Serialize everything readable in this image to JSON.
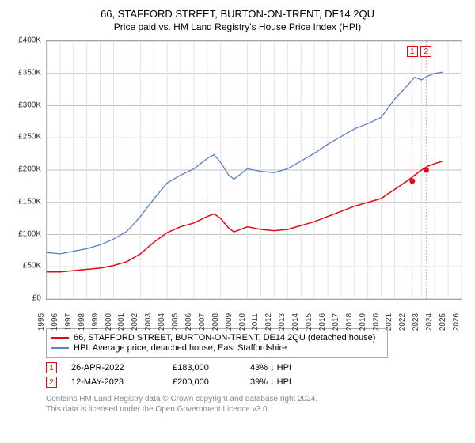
{
  "title": "66, STAFFORD STREET, BURTON-ON-TRENT, DE14 2QU",
  "subtitle": "Price paid vs. HM Land Registry's House Price Index (HPI)",
  "chart": {
    "type": "line",
    "background_color": "#ffffff",
    "border_color": "#888888",
    "grid_y_color": "#bfbfbf",
    "grid_x_color": "#e2e2e2",
    "y": {
      "min": 0,
      "max": 400000,
      "step": 50000,
      "prefix": "£",
      "suffix": "K",
      "divisor": 1000,
      "fontsize": 10
    },
    "x": {
      "years": [
        1995,
        1996,
        1997,
        1998,
        1999,
        2000,
        2001,
        2002,
        2003,
        2004,
        2005,
        2006,
        2007,
        2008,
        2009,
        2010,
        2011,
        2012,
        2013,
        2014,
        2015,
        2016,
        2017,
        2018,
        2019,
        2020,
        2021,
        2022,
        2023,
        2024,
        2025,
        2026
      ],
      "min": 1995,
      "max": 2026,
      "fontsize": 10
    },
    "series": [
      {
        "id": "property",
        "label": "66, STAFFORD STREET, BURTON-ON-TRENT, DE14 2QU (detached house)",
        "color": "#e30613",
        "width": 1.5,
        "points": [
          [
            1995,
            42000
          ],
          [
            1996,
            42000
          ],
          [
            1997,
            44000
          ],
          [
            1998,
            46000
          ],
          [
            1999,
            48000
          ],
          [
            2000,
            52000
          ],
          [
            2001,
            58000
          ],
          [
            2002,
            70000
          ],
          [
            2003,
            88000
          ],
          [
            2004,
            103000
          ],
          [
            2005,
            112000
          ],
          [
            2006,
            118000
          ],
          [
            2007,
            128000
          ],
          [
            2007.5,
            132000
          ],
          [
            2008,
            125000
          ],
          [
            2008.6,
            110000
          ],
          [
            2009,
            104000
          ],
          [
            2010,
            112000
          ],
          [
            2011,
            108000
          ],
          [
            2012,
            106000
          ],
          [
            2013,
            108000
          ],
          [
            2014,
            114000
          ],
          [
            2015,
            120000
          ],
          [
            2016,
            128000
          ],
          [
            2017,
            136000
          ],
          [
            2018,
            144000
          ],
          [
            2019,
            150000
          ],
          [
            2020,
            156000
          ],
          [
            2021,
            170000
          ],
          [
            2022,
            184000
          ],
          [
            2022.5,
            192000
          ],
          [
            2023,
            200000
          ],
          [
            2023.5,
            206000
          ],
          [
            2024,
            210000
          ],
          [
            2024.6,
            214000
          ]
        ]
      },
      {
        "id": "hpi",
        "label": "HPI: Average price, detached house, East Staffordshire",
        "color": "#5b7fc7",
        "width": 1.3,
        "points": [
          [
            1995,
            72000
          ],
          [
            1996,
            70000
          ],
          [
            1997,
            74000
          ],
          [
            1998,
            78000
          ],
          [
            1999,
            84000
          ],
          [
            2000,
            93000
          ],
          [
            2001,
            105000
          ],
          [
            2002,
            128000
          ],
          [
            2003,
            155000
          ],
          [
            2004,
            180000
          ],
          [
            2005,
            192000
          ],
          [
            2006,
            202000
          ],
          [
            2007,
            218000
          ],
          [
            2007.5,
            224000
          ],
          [
            2008,
            212000
          ],
          [
            2008.6,
            192000
          ],
          [
            2009,
            186000
          ],
          [
            2010,
            202000
          ],
          [
            2011,
            198000
          ],
          [
            2012,
            196000
          ],
          [
            2013,
            202000
          ],
          [
            2014,
            214000
          ],
          [
            2015,
            226000
          ],
          [
            2016,
            240000
          ],
          [
            2017,
            252000
          ],
          [
            2018,
            264000
          ],
          [
            2019,
            272000
          ],
          [
            2020,
            282000
          ],
          [
            2021,
            310000
          ],
          [
            2022,
            332000
          ],
          [
            2022.5,
            344000
          ],
          [
            2023,
            340000
          ],
          [
            2023.5,
            346000
          ],
          [
            2024,
            350000
          ],
          [
            2024.6,
            352000
          ]
        ]
      }
    ],
    "event_markers": [
      {
        "n": "1",
        "x": 2022.32,
        "y": 183000,
        "color": "#e30613"
      },
      {
        "n": "2",
        "x": 2023.36,
        "y": 200000,
        "color": "#e30613"
      }
    ],
    "event_vline_color": "#e9a0a5"
  },
  "legend": {
    "items": [
      {
        "color": "#e30613",
        "label": "66, STAFFORD STREET, BURTON-ON-TRENT, DE14 2QU (detached house)"
      },
      {
        "color": "#5b7fc7",
        "label": "HPI: Average price, detached house, East Staffordshire"
      }
    ]
  },
  "events_table": {
    "rows": [
      {
        "n": "1",
        "color": "#e30613",
        "date": "26-APR-2022",
        "price": "£183,000",
        "diff": "43% ↓ HPI"
      },
      {
        "n": "2",
        "color": "#e30613",
        "date": "12-MAY-2023",
        "price": "£200,000",
        "diff": "39% ↓ HPI"
      }
    ]
  },
  "footer": {
    "line1": "Contains HM Land Registry data © Crown copyright and database right 2024.",
    "line2": "This data is licensed under the Open Government Licence v3.0."
  }
}
